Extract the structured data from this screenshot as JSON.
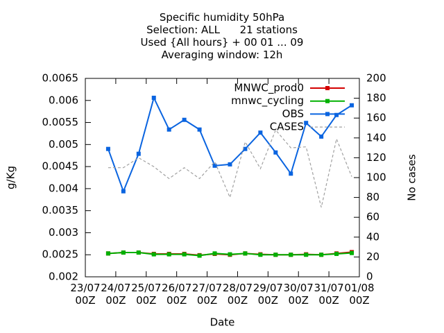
{
  "chart_data": {
    "type": "line",
    "title": "Specific humidity 50hPa\nSelection: ALL      21 stations\nUsed {All hours} + 00 01 ... 09\nAveraging window: 12h",
    "xlabel": "Date",
    "ylabel": "g/Kg",
    "y2label": "No cases",
    "x": [
      18,
      30,
      42,
      54,
      66,
      78,
      90,
      102,
      114,
      126,
      138,
      150,
      162,
      174,
      186,
      198,
      210
    ],
    "xlim": [
      0,
      216
    ],
    "xticks": [
      {
        "value": 0,
        "label": "23/07\n00Z"
      },
      {
        "value": 24,
        "label": "24/07\n00Z"
      },
      {
        "value": 48,
        "label": "25/07\n00Z"
      },
      {
        "value": 72,
        "label": "26/07\n00Z"
      },
      {
        "value": 96,
        "label": "27/07\n00Z"
      },
      {
        "value": 120,
        "label": "28/07\n00Z"
      },
      {
        "value": 144,
        "label": "29/07\n00Z"
      },
      {
        "value": 168,
        "label": "30/07\n00Z"
      },
      {
        "value": 192,
        "label": "31/07\n00Z"
      },
      {
        "value": 216,
        "label": "01/08\n00Z"
      }
    ],
    "ylim": [
      0.002,
      0.0065
    ],
    "yticks": [
      0.002,
      0.0025,
      0.003,
      0.0035,
      0.004,
      0.0045,
      0.005,
      0.0055,
      0.006,
      0.0065
    ],
    "y2lim": [
      0,
      200
    ],
    "y2ticks": [
      0,
      20,
      40,
      60,
      80,
      100,
      120,
      140,
      160,
      180,
      200
    ],
    "legend": "top-right",
    "series": [
      {
        "name": "MNWC_prod0",
        "color": "#d40000",
        "style": "linespoints",
        "values": [
          0.00253,
          0.00255,
          0.00255,
          0.00252,
          0.00252,
          0.00252,
          0.00249,
          0.00252,
          0.0025,
          0.00253,
          0.00251,
          0.0025,
          0.0025,
          0.00251,
          0.0025,
          0.00253,
          0.00256
        ]
      },
      {
        "name": "mnwc_cycling",
        "color": "#00b000",
        "style": "linespoints",
        "values": [
          0.00253,
          0.00255,
          0.00255,
          0.00251,
          0.00251,
          0.00251,
          0.00248,
          0.00253,
          0.00251,
          0.00253,
          0.0025,
          0.0025,
          0.0025,
          0.0025,
          0.0025,
          0.00252,
          0.00254
        ]
      },
      {
        "name": "OBS",
        "color": "#0a64e0",
        "style": "linespoints",
        "values": [
          0.0049,
          0.00394,
          0.00479,
          0.00606,
          0.00534,
          0.00556,
          0.00534,
          0.00452,
          0.00455,
          0.0049,
          0.00527,
          0.00482,
          0.00434,
          0.00549,
          0.00518,
          0.00567,
          0.00589
        ]
      },
      {
        "name": "CASES",
        "color": "#a0a0a0",
        "style": "dashed",
        "axis": "y2",
        "values": [
          110,
          110,
          120,
          111,
          99,
          110,
          99,
          116,
          80,
          136,
          109,
          148,
          130,
          131,
          70,
          139,
          101
        ]
      }
    ]
  }
}
